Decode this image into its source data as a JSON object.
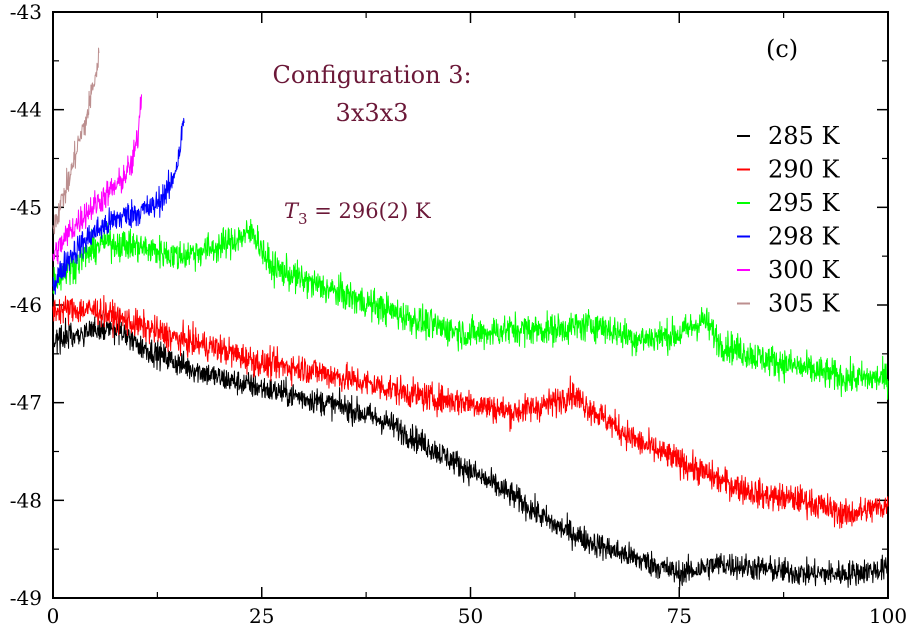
{
  "chart_data": {
    "type": "line",
    "xlim": [
      0,
      100
    ],
    "ylim": [
      -49,
      -43
    ],
    "x_ticks": [
      "0",
      "25",
      "50",
      "75",
      "100"
    ],
    "y_ticks": [
      "-49",
      "-48",
      "-47",
      "-46",
      "-45",
      "-44",
      "-43"
    ],
    "panel_label": "(c)",
    "annotations": {
      "config_line1": "Configuration 3:",
      "config_line2": "3x3x3",
      "t3_symbol": "T",
      "t3_subscript": "3",
      "t3_value": " = 296(2) K"
    },
    "legend_position": "right",
    "series": [
      {
        "name": "285 K",
        "color": "#000000",
        "noise": 0.09,
        "points": [
          [
            0,
            -46.35
          ],
          [
            5,
            -46.25
          ],
          [
            8,
            -46.25
          ],
          [
            10,
            -46.4
          ],
          [
            15,
            -46.6
          ],
          [
            20,
            -46.75
          ],
          [
            25,
            -46.85
          ],
          [
            30,
            -46.95
          ],
          [
            35,
            -47.05
          ],
          [
            40,
            -47.2
          ],
          [
            45,
            -47.45
          ],
          [
            50,
            -47.7
          ],
          [
            55,
            -47.95
          ],
          [
            60,
            -48.25
          ],
          [
            65,
            -48.45
          ],
          [
            70,
            -48.6
          ],
          [
            75,
            -48.75
          ],
          [
            80,
            -48.65
          ],
          [
            85,
            -48.7
          ],
          [
            90,
            -48.75
          ],
          [
            95,
            -48.75
          ],
          [
            100,
            -48.7
          ]
        ]
      },
      {
        "name": "290 K",
        "color": "#ff0000",
        "noise": 0.1,
        "points": [
          [
            0,
            -46.05
          ],
          [
            5,
            -46.05
          ],
          [
            10,
            -46.2
          ],
          [
            15,
            -46.35
          ],
          [
            20,
            -46.45
          ],
          [
            25,
            -46.6
          ],
          [
            30,
            -46.65
          ],
          [
            35,
            -46.75
          ],
          [
            40,
            -46.85
          ],
          [
            45,
            -46.95
          ],
          [
            50,
            -47.0
          ],
          [
            55,
            -47.1
          ],
          [
            60,
            -47.0
          ],
          [
            62,
            -46.9
          ],
          [
            65,
            -47.1
          ],
          [
            70,
            -47.4
          ],
          [
            75,
            -47.6
          ],
          [
            80,
            -47.8
          ],
          [
            85,
            -47.95
          ],
          [
            90,
            -48.0
          ],
          [
            95,
            -48.15
          ],
          [
            100,
            -48.05
          ]
        ]
      },
      {
        "name": "295 K",
        "color": "#00ff00",
        "noise": 0.11,
        "points": [
          [
            0,
            -45.75
          ],
          [
            3,
            -45.55
          ],
          [
            6,
            -45.35
          ],
          [
            10,
            -45.4
          ],
          [
            15,
            -45.5
          ],
          [
            20,
            -45.4
          ],
          [
            24,
            -45.25
          ],
          [
            26,
            -45.6
          ],
          [
            30,
            -45.75
          ],
          [
            35,
            -45.9
          ],
          [
            40,
            -46.05
          ],
          [
            45,
            -46.2
          ],
          [
            50,
            -46.3
          ],
          [
            55,
            -46.25
          ],
          [
            60,
            -46.25
          ],
          [
            65,
            -46.2
          ],
          [
            70,
            -46.35
          ],
          [
            75,
            -46.3
          ],
          [
            78,
            -46.15
          ],
          [
            80,
            -46.4
          ],
          [
            85,
            -46.55
          ],
          [
            90,
            -46.65
          ],
          [
            95,
            -46.75
          ],
          [
            100,
            -46.75
          ]
        ]
      },
      {
        "name": "298 K",
        "color": "#0000ff",
        "noise": 0.1,
        "points": [
          [
            0,
            -45.8
          ],
          [
            2,
            -45.5
          ],
          [
            5,
            -45.25
          ],
          [
            8,
            -45.1
          ],
          [
            10,
            -45.05
          ],
          [
            12,
            -45.0
          ],
          [
            14,
            -44.8
          ],
          [
            15,
            -44.5
          ],
          [
            15.7,
            -44.1
          ]
        ]
      },
      {
        "name": "300 K",
        "color": "#ff00ff",
        "noise": 0.1,
        "points": [
          [
            0,
            -45.5
          ],
          [
            2,
            -45.25
          ],
          [
            4,
            -45.05
          ],
          [
            6,
            -44.9
          ],
          [
            8,
            -44.75
          ],
          [
            9.5,
            -44.55
          ],
          [
            10.2,
            -44.25
          ],
          [
            10.6,
            -43.8
          ]
        ]
      },
      {
        "name": "305 K",
        "color": "#bc8f8f",
        "noise": 0.1,
        "points": [
          [
            0,
            -45.2
          ],
          [
            1,
            -44.95
          ],
          [
            2,
            -44.7
          ],
          [
            3,
            -44.35
          ],
          [
            4,
            -44.1
          ],
          [
            4.8,
            -43.75
          ],
          [
            5.5,
            -43.5
          ]
        ]
      }
    ]
  }
}
